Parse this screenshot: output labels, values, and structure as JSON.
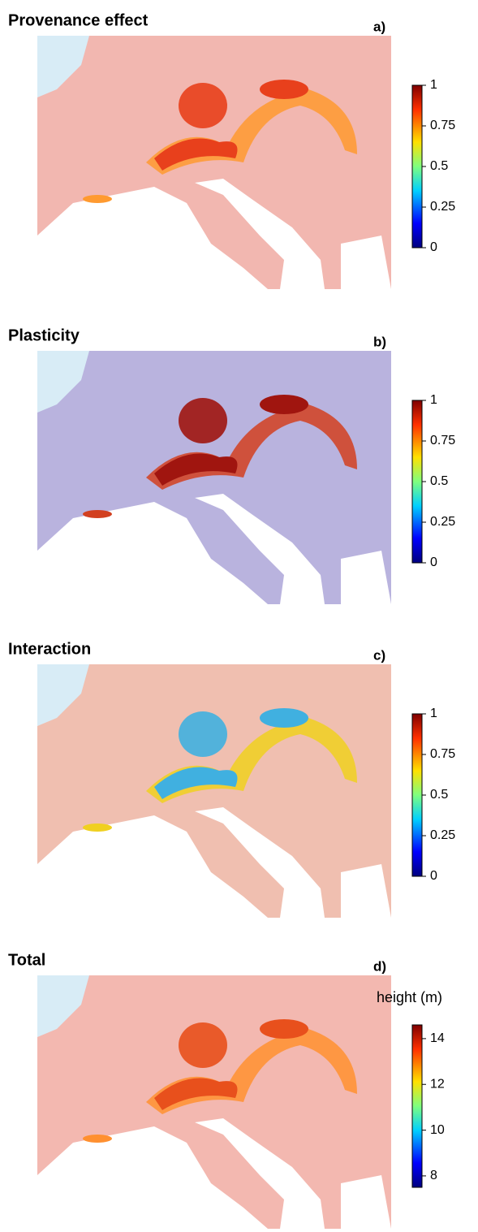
{
  "panels": [
    {
      "title": "Provenance effect",
      "letter": "a)",
      "colorbar": {
        "lim": [
          0,
          1
        ],
        "ticks": [
          0,
          0.25,
          0.5,
          0.75,
          1
        ]
      }
    },
    {
      "title": "Plasticity",
      "letter": "b)",
      "colorbar": {
        "lim": [
          0,
          1
        ],
        "ticks": [
          0,
          0.25,
          0.5,
          0.75,
          1
        ]
      }
    },
    {
      "title": "Interaction",
      "letter": "c)",
      "colorbar": {
        "lim": [
          0,
          1
        ],
        "ticks": [
          0,
          0.25,
          0.5,
          0.75,
          1
        ]
      }
    },
    {
      "title": "Total",
      "letter": "d)",
      "colorbar": {
        "label": "height (m)",
        "lim": [
          7.5,
          14.6
        ],
        "ticks": [
          8,
          10,
          12,
          14
        ]
      }
    }
  ]
}
